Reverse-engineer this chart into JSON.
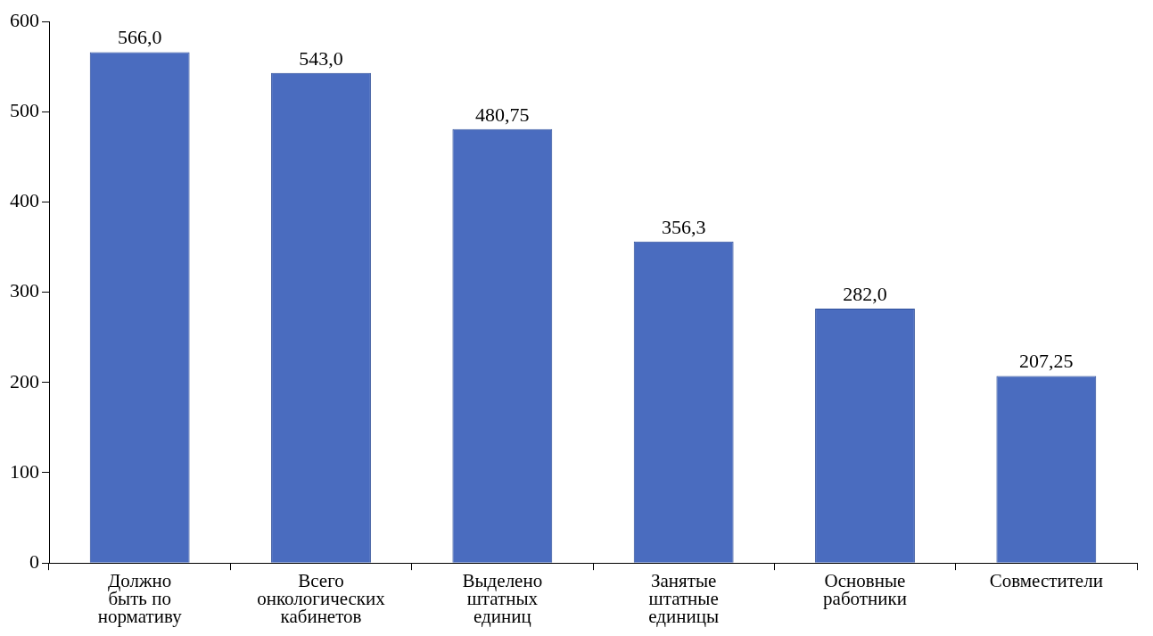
{
  "chart_data": {
    "type": "bar",
    "categories": [
      "Должно\nбыть по\nнормативу",
      "Всего\nонкологических\nкабинетов",
      "Выделено\nштатных\nединиц",
      "Занятые\nштатные\nединицы",
      "Основные\nработники",
      "Совместители"
    ],
    "values": [
      566,
      543,
      480.75,
      356.3,
      282,
      207.25
    ],
    "value_labels": [
      "566,0",
      "543,0",
      "480,75",
      "356,3",
      "282,0",
      "207,25"
    ],
    "color": "#4a6cbf",
    "ylim": [
      0,
      600
    ],
    "yticks": [
      0,
      100,
      200,
      300,
      400,
      500,
      600
    ],
    "grid": false,
    "legend": false
  }
}
